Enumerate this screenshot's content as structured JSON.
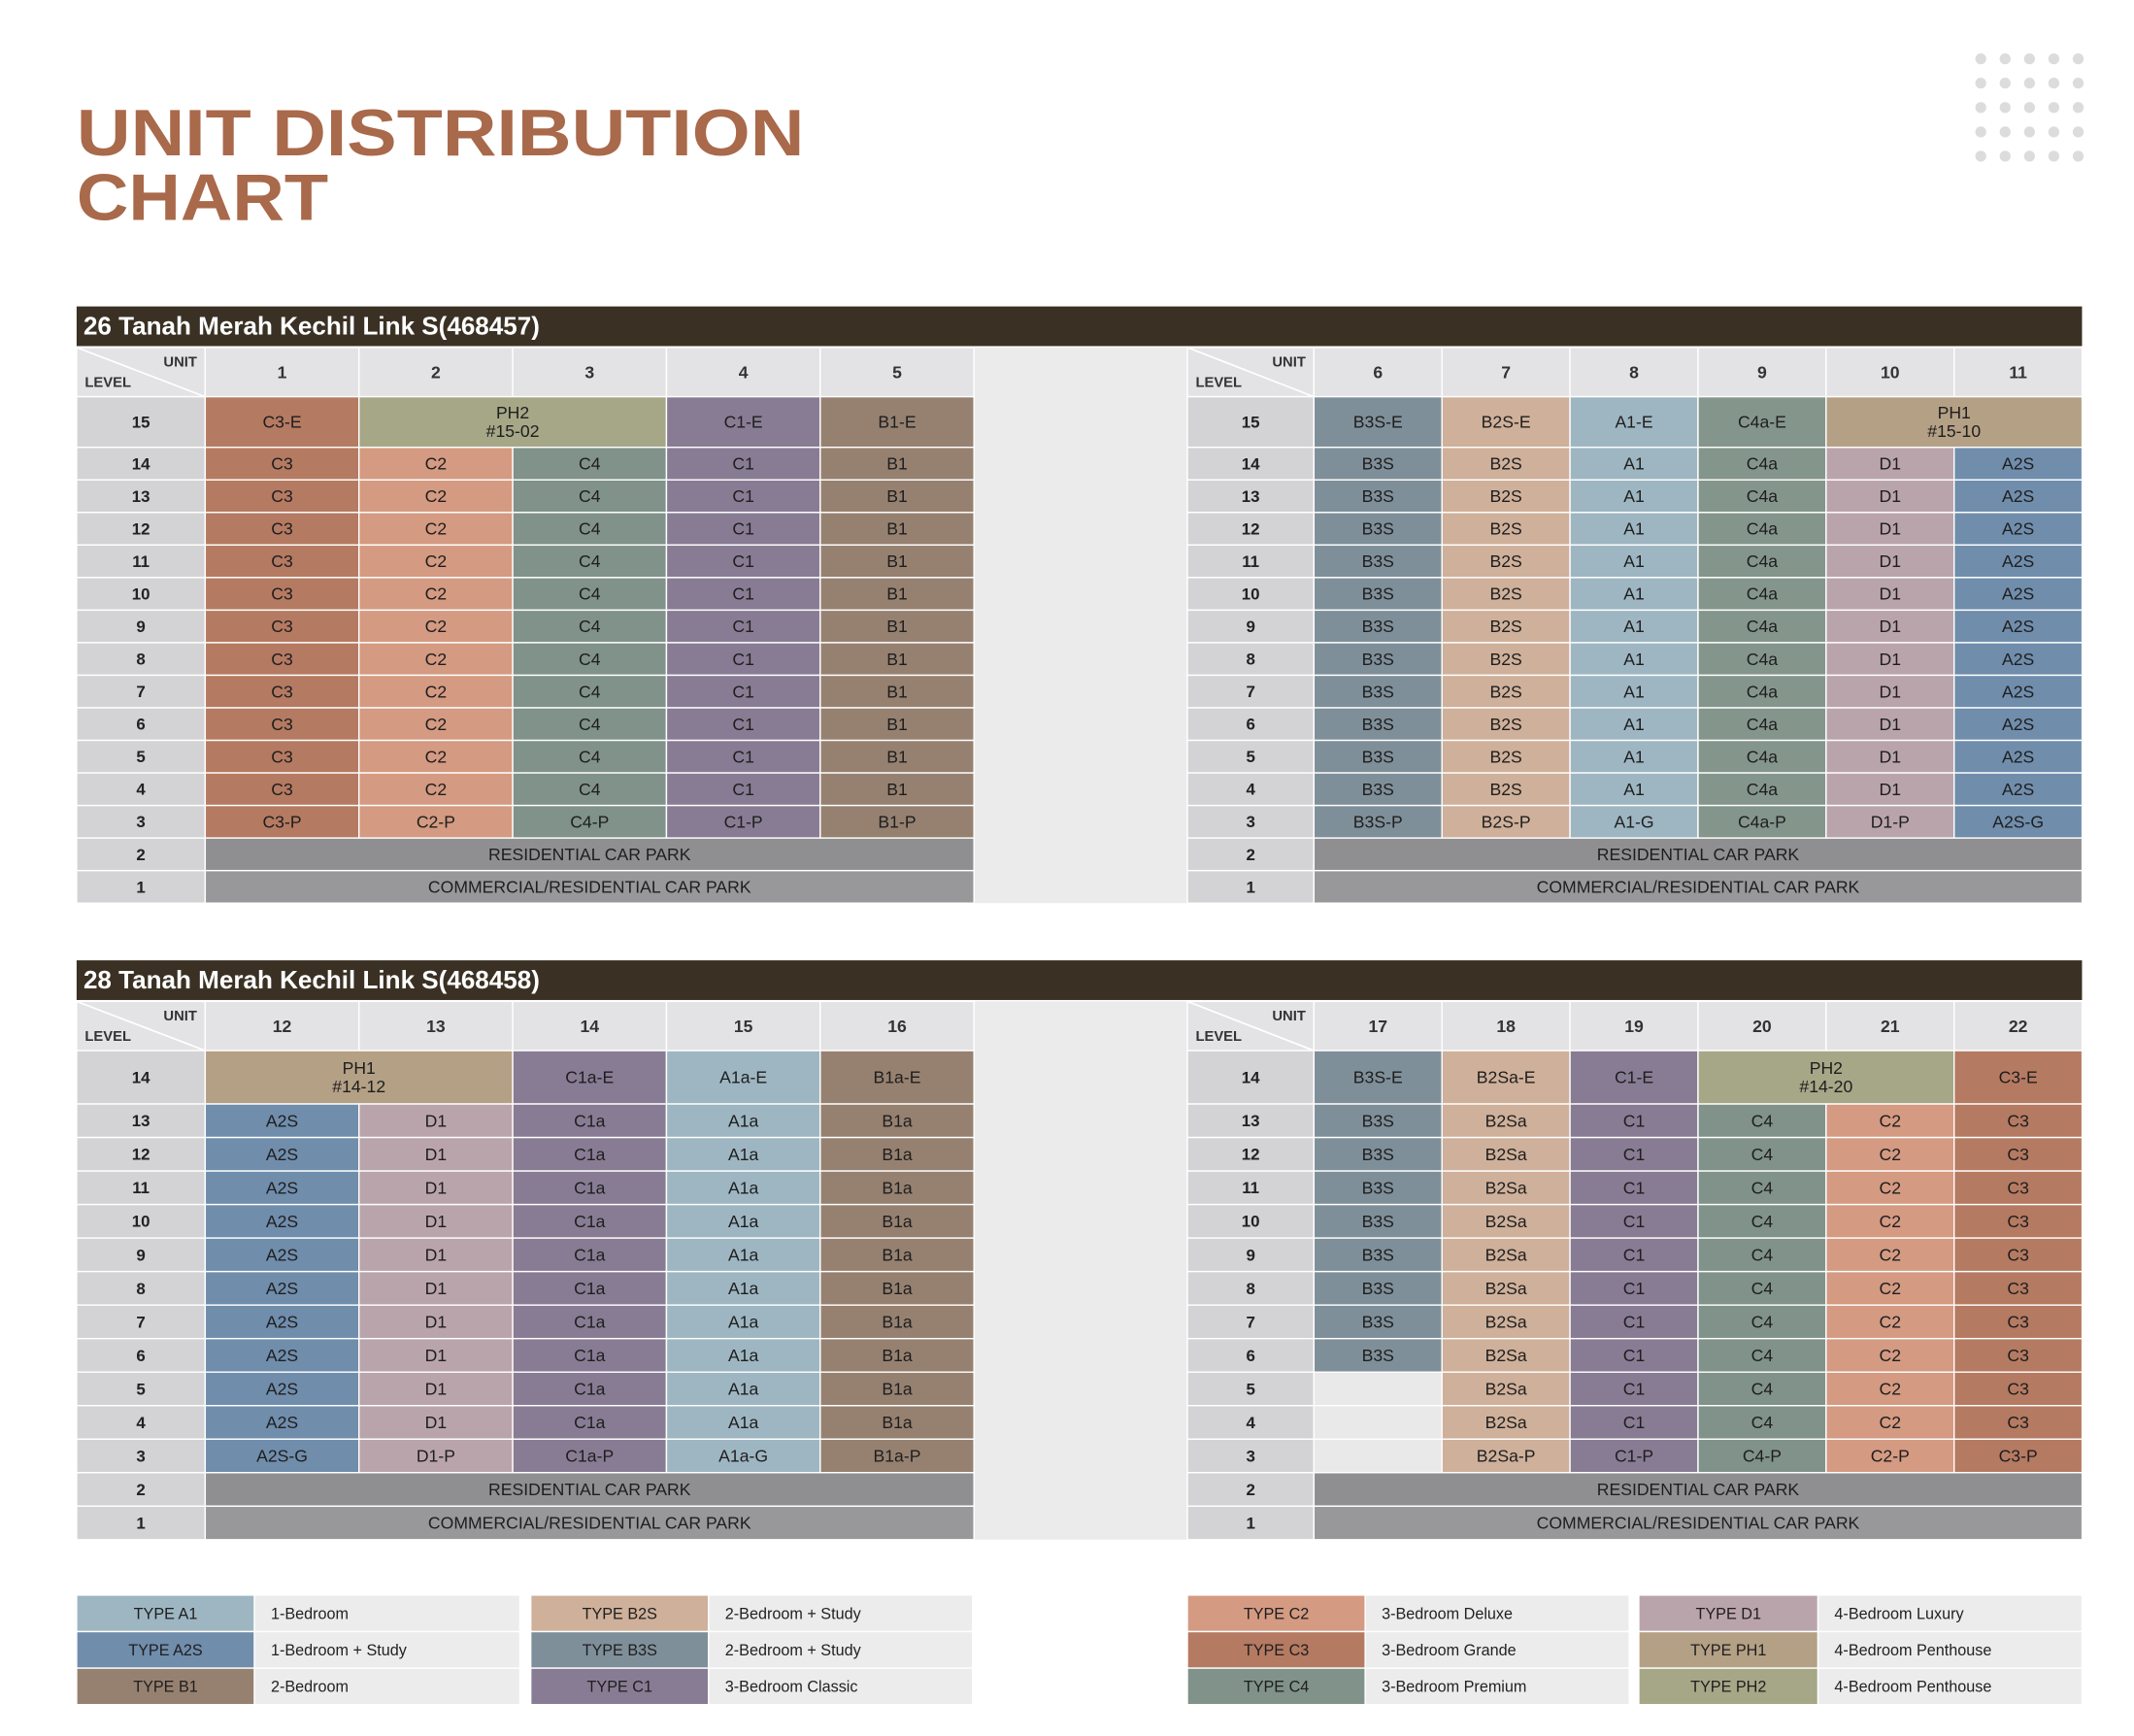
{
  "title": [
    "UNIT DISTRIBUTION",
    "CHART"
  ],
  "corner": {
    "unit": "UNIT",
    "level": "LEVEL"
  },
  "blocks": [
    {
      "address": "26 Tanah Merah Kechil Link S(468457)",
      "halves": [
        {
          "columns": [
            {
              "unit": "1",
              "color": "#b57a62"
            },
            {
              "unit": "2",
              "color": "#d49a82"
            },
            {
              "unit": "3",
              "color": "#80928a"
            },
            {
              "unit": "4",
              "color": "#887c94"
            },
            {
              "unit": "5",
              "color": "#968171"
            }
          ],
          "rows": [
            {
              "level": "15",
              "cells": [
                "C3-E",
                {
                  "text": [
                    "PH2",
                    "#15-02"
                  ],
                  "span": 2,
                  "color": "#a5a787"
                },
                "C1-E",
                "B1-E"
              ]
            },
            {
              "level": "14",
              "cells": [
                "C3",
                "C2",
                "C4",
                "C1",
                "B1"
              ]
            },
            {
              "level": "13",
              "cells": [
                "C3",
                "C2",
                "C4",
                "C1",
                "B1"
              ]
            },
            {
              "level": "12",
              "cells": [
                "C3",
                "C2",
                "C4",
                "C1",
                "B1"
              ]
            },
            {
              "level": "11",
              "cells": [
                "C3",
                "C2",
                "C4",
                "C1",
                "B1"
              ]
            },
            {
              "level": "10",
              "cells": [
                "C3",
                "C2",
                "C4",
                "C1",
                "B1"
              ]
            },
            {
              "level": "9",
              "cells": [
                "C3",
                "C2",
                "C4",
                "C1",
                "B1"
              ]
            },
            {
              "level": "8",
              "cells": [
                "C3",
                "C2",
                "C4",
                "C1",
                "B1"
              ]
            },
            {
              "level": "7",
              "cells": [
                "C3",
                "C2",
                "C4",
                "C1",
                "B1"
              ]
            },
            {
              "level": "6",
              "cells": [
                "C3",
                "C2",
                "C4",
                "C1",
                "B1"
              ]
            },
            {
              "level": "5",
              "cells": [
                "C3",
                "C2",
                "C4",
                "C1",
                "B1"
              ]
            },
            {
              "level": "4",
              "cells": [
                "C3",
                "C2",
                "C4",
                "C1",
                "B1"
              ]
            },
            {
              "level": "3",
              "cells": [
                "C3-P",
                "C2-P",
                "C4-P",
                "C1-P",
                "B1-P"
              ]
            },
            {
              "level": "2",
              "cells": [
                {
                  "text": [
                    "RESIDENTIAL CAR PARK"
                  ],
                  "span": 5,
                  "color": "#8f8f91"
                }
              ]
            },
            {
              "level": "1",
              "cells": [
                {
                  "text": [
                    "COMMERCIAL/RESIDENTIAL CAR PARK"
                  ],
                  "span": 5,
                  "color": "#98989b"
                }
              ]
            }
          ]
        },
        {
          "columns": [
            {
              "unit": "6",
              "color": "#7f8f99"
            },
            {
              "unit": "7",
              "color": "#cfb09a"
            },
            {
              "unit": "8",
              "color": "#9eb6c2"
            },
            {
              "unit": "9",
              "color": "#84958c"
            },
            {
              "unit": "10",
              "color": "#baa4ab"
            },
            {
              "unit": "11",
              "color": "#708dac"
            }
          ],
          "rows": [
            {
              "level": "15",
              "cells": [
                "B3S-E",
                "B2S-E",
                "A1-E",
                "C4a-E",
                {
                  "text": [
                    "PH1",
                    "#15-10"
                  ],
                  "span": 2,
                  "color": "#b4a085"
                }
              ]
            },
            {
              "level": "14",
              "cells": [
                "B3S",
                "B2S",
                "A1",
                "C4a",
                "D1",
                "A2S"
              ]
            },
            {
              "level": "13",
              "cells": [
                "B3S",
                "B2S",
                "A1",
                "C4a",
                "D1",
                "A2S"
              ]
            },
            {
              "level": "12",
              "cells": [
                "B3S",
                "B2S",
                "A1",
                "C4a",
                "D1",
                "A2S"
              ]
            },
            {
              "level": "11",
              "cells": [
                "B3S",
                "B2S",
                "A1",
                "C4a",
                "D1",
                "A2S"
              ]
            },
            {
              "level": "10",
              "cells": [
                "B3S",
                "B2S",
                "A1",
                "C4a",
                "D1",
                "A2S"
              ]
            },
            {
              "level": "9",
              "cells": [
                "B3S",
                "B2S",
                "A1",
                "C4a",
                "D1",
                "A2S"
              ]
            },
            {
              "level": "8",
              "cells": [
                "B3S",
                "B2S",
                "A1",
                "C4a",
                "D1",
                "A2S"
              ]
            },
            {
              "level": "7",
              "cells": [
                "B3S",
                "B2S",
                "A1",
                "C4a",
                "D1",
                "A2S"
              ]
            },
            {
              "level": "6",
              "cells": [
                "B3S",
                "B2S",
                "A1",
                "C4a",
                "D1",
                "A2S"
              ]
            },
            {
              "level": "5",
              "cells": [
                "B3S",
                "B2S",
                "A1",
                "C4a",
                "D1",
                "A2S"
              ]
            },
            {
              "level": "4",
              "cells": [
                "B3S",
                "B2S",
                "A1",
                "C4a",
                "D1",
                "A2S"
              ]
            },
            {
              "level": "3",
              "cells": [
                "B3S-P",
                "B2S-P",
                "A1-G",
                "C4a-P",
                "D1-P",
                "A2S-G"
              ]
            },
            {
              "level": "2",
              "cells": [
                {
                  "text": [
                    "RESIDENTIAL CAR PARK"
                  ],
                  "span": 6,
                  "color": "#8f8f91"
                }
              ]
            },
            {
              "level": "1",
              "cells": [
                {
                  "text": [
                    "COMMERCIAL/RESIDENTIAL CAR PARK"
                  ],
                  "span": 6,
                  "color": "#98989b"
                }
              ]
            }
          ]
        }
      ]
    },
    {
      "address": "28 Tanah Merah Kechil Link S(468458)",
      "halves": [
        {
          "columns": [
            {
              "unit": "12",
              "color": "#708dac"
            },
            {
              "unit": "13",
              "color": "#baa4ab"
            },
            {
              "unit": "14",
              "color": "#887c94"
            },
            {
              "unit": "15",
              "color": "#9eb6c2"
            },
            {
              "unit": "16",
              "color": "#968171"
            }
          ],
          "rows": [
            {
              "level": "14",
              "cells": [
                {
                  "text": [
                    "PH1",
                    "#14-12"
                  ],
                  "span": 2,
                  "color": "#b4a085"
                },
                "C1a-E",
                "A1a-E",
                "B1a-E"
              ]
            },
            {
              "level": "13",
              "cells": [
                "A2S",
                "D1",
                "C1a",
                "A1a",
                "B1a"
              ]
            },
            {
              "level": "12",
              "cells": [
                "A2S",
                "D1",
                "C1a",
                "A1a",
                "B1a"
              ]
            },
            {
              "level": "11",
              "cells": [
                "A2S",
                "D1",
                "C1a",
                "A1a",
                "B1a"
              ]
            },
            {
              "level": "10",
              "cells": [
                "A2S",
                "D1",
                "C1a",
                "A1a",
                "B1a"
              ]
            },
            {
              "level": "9",
              "cells": [
                "A2S",
                "D1",
                "C1a",
                "A1a",
                "B1a"
              ]
            },
            {
              "level": "8",
              "cells": [
                "A2S",
                "D1",
                "C1a",
                "A1a",
                "B1a"
              ]
            },
            {
              "level": "7",
              "cells": [
                "A2S",
                "D1",
                "C1a",
                "A1a",
                "B1a"
              ]
            },
            {
              "level": "6",
              "cells": [
                "A2S",
                "D1",
                "C1a",
                "A1a",
                "B1a"
              ]
            },
            {
              "level": "5",
              "cells": [
                "A2S",
                "D1",
                "C1a",
                "A1a",
                "B1a"
              ]
            },
            {
              "level": "4",
              "cells": [
                "A2S",
                "D1",
                "C1a",
                "A1a",
                "B1a"
              ]
            },
            {
              "level": "3",
              "cells": [
                "A2S-G",
                "D1-P",
                "C1a-P",
                "A1a-G",
                "B1a-P"
              ]
            },
            {
              "level": "2",
              "cells": [
                {
                  "text": [
                    "RESIDENTIAL CAR PARK"
                  ],
                  "span": 5,
                  "color": "#8f8f91"
                }
              ]
            },
            {
              "level": "1",
              "cells": [
                {
                  "text": [
                    "COMMERCIAL/RESIDENTIAL CAR PARK"
                  ],
                  "span": 5,
                  "color": "#98989b"
                }
              ]
            }
          ]
        },
        {
          "columns": [
            {
              "unit": "17",
              "color": "#7f8f99"
            },
            {
              "unit": "18",
              "color": "#cfb09a"
            },
            {
              "unit": "19",
              "color": "#887c94"
            },
            {
              "unit": "20",
              "color": "#80928a"
            },
            {
              "unit": "21",
              "color": "#d49a82"
            },
            {
              "unit": "22",
              "color": "#b57a62"
            }
          ],
          "rows": [
            {
              "level": "14",
              "cells": [
                "B3S-E",
                "B2Sa-E",
                "C1-E",
                {
                  "text": [
                    "PH2",
                    "#14-20"
                  ],
                  "span": 2,
                  "color": "#a5a787"
                },
                "C3-E"
              ]
            },
            {
              "level": "13",
              "cells": [
                "B3S",
                "B2Sa",
                "C1",
                "C4",
                "C2",
                "C3"
              ]
            },
            {
              "level": "12",
              "cells": [
                "B3S",
                "B2Sa",
                "C1",
                "C4",
                "C2",
                "C3"
              ]
            },
            {
              "level": "11",
              "cells": [
                "B3S",
                "B2Sa",
                "C1",
                "C4",
                "C2",
                "C3"
              ]
            },
            {
              "level": "10",
              "cells": [
                "B3S",
                "B2Sa",
                "C1",
                "C4",
                "C2",
                "C3"
              ]
            },
            {
              "level": "9",
              "cells": [
                "B3S",
                "B2Sa",
                "C1",
                "C4",
                "C2",
                "C3"
              ]
            },
            {
              "level": "8",
              "cells": [
                "B3S",
                "B2Sa",
                "C1",
                "C4",
                "C2",
                "C3"
              ]
            },
            {
              "level": "7",
              "cells": [
                "B3S",
                "B2Sa",
                "C1",
                "C4",
                "C2",
                "C3"
              ]
            },
            {
              "level": "6",
              "cells": [
                "B3S",
                "B2Sa",
                "C1",
                "C4",
                "C2",
                "C3"
              ]
            },
            {
              "level": "5",
              "cells": [
                null,
                "B2Sa",
                "C1",
                "C4",
                "C2",
                "C3"
              ]
            },
            {
              "level": "4",
              "cells": [
                null,
                "B2Sa",
                "C1",
                "C4",
                "C2",
                "C3"
              ]
            },
            {
              "level": "3",
              "cells": [
                null,
                "B2Sa-P",
                "C1-P",
                "C4-P",
                "C2-P",
                "C3-P"
              ]
            },
            {
              "level": "2",
              "cells": [
                {
                  "text": [
                    "RESIDENTIAL CAR PARK"
                  ],
                  "span": 6,
                  "color": "#8f8f91"
                }
              ]
            },
            {
              "level": "1",
              "cells": [
                {
                  "text": [
                    "COMMERCIAL/RESIDENTIAL CAR PARK"
                  ],
                  "span": 6,
                  "color": "#98989b"
                }
              ]
            }
          ]
        }
      ]
    }
  ],
  "legend": [
    {
      "code": "TYPE A1",
      "desc": "1-Bedroom",
      "color": "#9eb6c2"
    },
    {
      "code": "TYPE A2S",
      "desc": "1-Bedroom + Study",
      "color": "#708dac"
    },
    {
      "code": "TYPE B1",
      "desc": "2-Bedroom",
      "color": "#968171"
    },
    {
      "code": "TYPE B2S",
      "desc": "2-Bedroom + Study",
      "color": "#cfb09a"
    },
    {
      "code": "TYPE B3S",
      "desc": "2-Bedroom + Study",
      "color": "#7f8f99"
    },
    {
      "code": "TYPE C1",
      "desc": "3-Bedroom Classic",
      "color": "#887c94"
    },
    {
      "code": "TYPE C2",
      "desc": "3-Bedroom Deluxe",
      "color": "#d49a82"
    },
    {
      "code": "TYPE C3",
      "desc": "3-Bedroom Grande",
      "color": "#b57a62"
    },
    {
      "code": "TYPE C4",
      "desc": "3-Bedroom Premium",
      "color": "#80928a"
    },
    {
      "code": "TYPE D1",
      "desc": "4-Bedroom Luxury",
      "color": "#baa4ab"
    },
    {
      "code": "TYPE PH1",
      "desc": "4-Bedroom Penthouse",
      "color": "#b4a085"
    },
    {
      "code": "TYPE PH2",
      "desc": "4-Bedroom Penthouse",
      "color": "#a5a787"
    }
  ]
}
